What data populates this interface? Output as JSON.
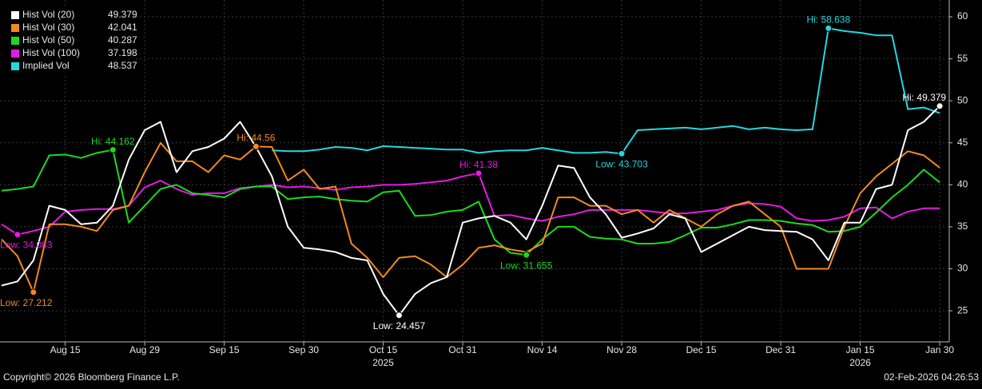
{
  "chart_data": {
    "type": "line",
    "categories": [
      null,
      null,
      null,
      null,
      "Aug 15",
      null,
      null,
      null,
      null,
      "Aug 29",
      null,
      null,
      null,
      null,
      "Sep 15",
      null,
      null,
      null,
      null,
      "Sep 30",
      null,
      null,
      null,
      null,
      "Oct 15",
      null,
      null,
      null,
      null,
      "Oct 31",
      null,
      null,
      null,
      null,
      "Nov 14",
      null,
      null,
      null,
      null,
      "Nov 28",
      null,
      null,
      null,
      null,
      "Dec 15",
      null,
      null,
      null,
      null,
      "Dec 31",
      null,
      null,
      null,
      null,
      "Jan 15",
      null,
      null,
      null,
      null,
      "Jan 30"
    ],
    "x_sublabels": [
      null,
      null,
      null,
      null,
      null,
      null,
      null,
      null,
      null,
      null,
      null,
      null,
      null,
      null,
      null,
      null,
      null,
      null,
      null,
      null,
      null,
      null,
      null,
      null,
      "2025",
      null,
      null,
      null,
      null,
      null,
      null,
      null,
      null,
      null,
      null,
      null,
      null,
      null,
      null,
      null,
      null,
      null,
      null,
      null,
      null,
      null,
      null,
      null,
      null,
      null,
      null,
      null,
      null,
      null,
      "2026",
      null,
      null,
      null,
      null,
      null
    ],
    "ylim": [
      21.3,
      62
    ],
    "yticks": [
      25,
      30,
      35,
      40,
      45,
      50,
      55,
      60
    ],
    "grid": true,
    "legend": "top-left",
    "series": [
      {
        "name": "Hist Vol (20)",
        "color": "#ffffff",
        "values": [
          28,
          28.5,
          31,
          37.5,
          37,
          35.3,
          35.5,
          37.5,
          43,
          46.5,
          47.5,
          41.5,
          44,
          44.5,
          45.5,
          47.5,
          44.5,
          41,
          35,
          32.5,
          32.3,
          32,
          31.3,
          31,
          27,
          24.457,
          27,
          28.3,
          29,
          35.5,
          36,
          36.3,
          35.5,
          33.5,
          37.5,
          42.3,
          42,
          38.5,
          36.5,
          33.7,
          34.2,
          34.8,
          36.5,
          36,
          32,
          33,
          34,
          35,
          34.6,
          34.5,
          34.4,
          33.5,
          31,
          35.5,
          35.5,
          39.5,
          40,
          46.5,
          47.5,
          49.379
        ],
        "value_labels": [
          null,
          null,
          null,
          null,
          null,
          null,
          null,
          null,
          null,
          null,
          null,
          null,
          null,
          null,
          null,
          null,
          null,
          null,
          null,
          null,
          null,
          null,
          null,
          null,
          null,
          "Low: 24.457",
          null,
          null,
          null,
          null,
          null,
          null,
          null,
          null,
          null,
          null,
          null,
          null,
          null,
          null,
          null,
          null,
          null,
          null,
          null,
          null,
          null,
          null,
          null,
          null,
          null,
          null,
          null,
          null,
          null,
          null,
          null,
          null,
          null,
          "Hi: 49.379"
        ]
      },
      {
        "name": "Hist Vol (30)",
        "color": "#f28a1e",
        "values": [
          33.5,
          31.5,
          27.212,
          35.3,
          35.3,
          35,
          34.5,
          37,
          37.5,
          41.5,
          45,
          42.8,
          42.8,
          41.5,
          43.5,
          43,
          44.56,
          44.5,
          40.5,
          41.8,
          39.5,
          39.8,
          33,
          31.3,
          29,
          31.3,
          31.5,
          30.5,
          29,
          30.5,
          32.5,
          32.8,
          32.3,
          32,
          33,
          38.5,
          38.5,
          37.5,
          37.5,
          36.5,
          37,
          35.5,
          37,
          36,
          35,
          36.5,
          37.5,
          38,
          36.5,
          35,
          30,
          30,
          30,
          35,
          39,
          41,
          42.5,
          44,
          43.5,
          42.041
        ],
        "value_labels": [
          null,
          null,
          "Low: 27.212",
          null,
          null,
          null,
          null,
          null,
          null,
          null,
          null,
          null,
          null,
          null,
          null,
          null,
          "Hi: 44.56",
          null,
          null,
          null,
          null,
          null,
          null,
          null,
          null,
          null,
          null,
          null,
          null,
          null,
          null,
          null,
          null,
          null,
          null,
          null,
          null,
          null,
          null,
          null,
          null,
          null,
          null,
          null,
          null,
          null,
          null,
          null,
          null,
          null,
          null,
          null,
          null,
          null,
          null,
          null,
          null,
          null,
          null,
          null
        ]
      },
      {
        "name": "Hist Vol (50)",
        "color": "#1ed81e",
        "values": [
          39.3,
          39.5,
          39.8,
          43.5,
          43.6,
          43.2,
          43.8,
          44.162,
          35.5,
          37.5,
          39.5,
          40,
          39,
          38.8,
          38.5,
          39.5,
          39.8,
          39.8,
          38.3,
          38.5,
          38.6,
          38.3,
          38.1,
          38,
          39.1,
          39.3,
          36.3,
          36.4,
          36.8,
          37,
          38,
          33.5,
          31.9,
          31.655,
          33.5,
          35,
          35,
          33.8,
          33.6,
          33.5,
          33,
          33,
          33.2,
          34,
          34.9,
          34.9,
          35.3,
          35.8,
          35.8,
          35.7,
          35.4,
          35.2,
          34.4,
          34.5,
          35,
          36.7,
          38.5,
          40,
          41.8,
          40.287
        ],
        "value_labels": [
          null,
          null,
          null,
          null,
          null,
          null,
          null,
          "Hi: 44.162",
          null,
          null,
          null,
          null,
          null,
          null,
          null,
          null,
          null,
          null,
          null,
          null,
          null,
          null,
          null,
          null,
          null,
          null,
          null,
          null,
          null,
          null,
          null,
          null,
          null,
          "Low: 31.655",
          null,
          null,
          null,
          null,
          null,
          null,
          null,
          null,
          null,
          null,
          null,
          null,
          null,
          null,
          null,
          null,
          null,
          null,
          null,
          null,
          null,
          null,
          null,
          null,
          null,
          null
        ]
      },
      {
        "name": "Hist Vol (100)",
        "color": "#e619e6",
        "values": [
          35.3,
          34.083,
          34.5,
          35,
          36.8,
          37,
          37.1,
          37.1,
          37.5,
          39.7,
          40.5,
          39.5,
          38.8,
          39,
          39,
          39.6,
          39.8,
          40,
          39.7,
          39.8,
          39.6,
          39.4,
          39.7,
          39.8,
          40,
          40,
          40.1,
          40.3,
          40.5,
          41,
          41.38,
          36.3,
          36.4,
          36,
          35.7,
          36.2,
          36.5,
          37,
          37,
          37,
          37,
          36.8,
          36.6,
          36.6,
          36.8,
          37,
          37.5,
          37.8,
          37.7,
          37.4,
          36,
          35.7,
          35.8,
          36.2,
          37.2,
          37.3,
          36,
          36.8,
          37.2,
          37.198
        ],
        "value_labels": [
          null,
          "Low: 34.083",
          null,
          null,
          null,
          null,
          null,
          null,
          null,
          null,
          null,
          null,
          null,
          null,
          null,
          null,
          null,
          null,
          null,
          null,
          null,
          null,
          null,
          null,
          null,
          null,
          null,
          null,
          null,
          null,
          "Hi: 41.38",
          null,
          null,
          null,
          null,
          null,
          null,
          null,
          null,
          null,
          null,
          null,
          null,
          null,
          null,
          null,
          null,
          null,
          null,
          null,
          null,
          null,
          null,
          null,
          null,
          null,
          null,
          null,
          null,
          null
        ]
      },
      {
        "name": "Implied Vol",
        "color": "#22d8e0",
        "values": [
          null,
          null,
          null,
          null,
          null,
          null,
          null,
          null,
          null,
          null,
          null,
          null,
          null,
          null,
          null,
          null,
          null,
          44.1,
          44,
          44,
          44.2,
          44.5,
          44.4,
          44.1,
          44.6,
          44.5,
          44.4,
          44.3,
          44.2,
          44.2,
          43.8,
          44,
          44.1,
          44.1,
          44.4,
          44.1,
          43.8,
          43.8,
          43.9,
          43.703,
          46.5,
          46.6,
          46.7,
          46.8,
          46.6,
          46.8,
          47,
          46.6,
          46.8,
          46.6,
          46.5,
          46.6,
          58.638,
          58.3,
          58.1,
          57.8,
          57.8,
          49,
          49.2,
          48.537
        ],
        "value_labels": [
          null,
          null,
          null,
          null,
          null,
          null,
          null,
          null,
          null,
          null,
          null,
          null,
          null,
          null,
          null,
          null,
          null,
          null,
          null,
          null,
          null,
          null,
          null,
          null,
          null,
          null,
          null,
          null,
          null,
          null,
          null,
          null,
          null,
          null,
          null,
          null,
          null,
          null,
          null,
          "Low: 43.703",
          null,
          null,
          null,
          null,
          null,
          null,
          null,
          null,
          null,
          null,
          null,
          null,
          "Hi: 58.638",
          null,
          null,
          null,
          null,
          null,
          null,
          null
        ]
      }
    ]
  },
  "footer": {
    "copyright": "Copyright© 2026 Bloomberg Finance L.P.",
    "timestamp": "02-Feb-2026 04:26:53"
  }
}
